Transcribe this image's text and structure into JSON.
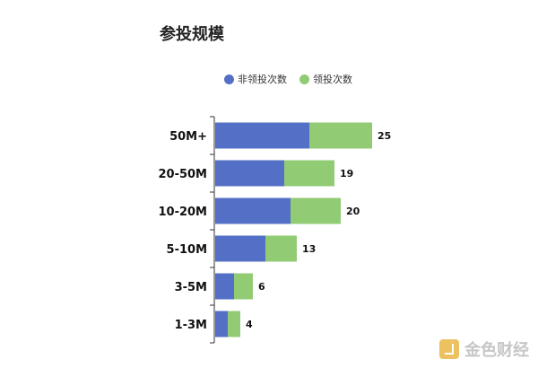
{
  "chart_data": {
    "type": "bar",
    "orientation": "horizontal",
    "stacked": true,
    "title": "参投规模",
    "categories": [
      "50M+",
      "20-50M",
      "10-20M",
      "5-10M",
      "3-5M",
      "1-3M"
    ],
    "series": [
      {
        "name": "非领投次数",
        "color": "#5470c6",
        "values": [
          15,
          11,
          12,
          8,
          3,
          2
        ]
      },
      {
        "name": "领投次数",
        "color": "#91cc75",
        "values": [
          10,
          8,
          8,
          5,
          3,
          2
        ]
      }
    ],
    "totals": [
      "25",
      "19",
      "20",
      "13",
      "6",
      "4"
    ],
    "xlim": [
      0,
      25
    ],
    "grid": false,
    "legend": "top"
  },
  "watermark": "金色财经"
}
